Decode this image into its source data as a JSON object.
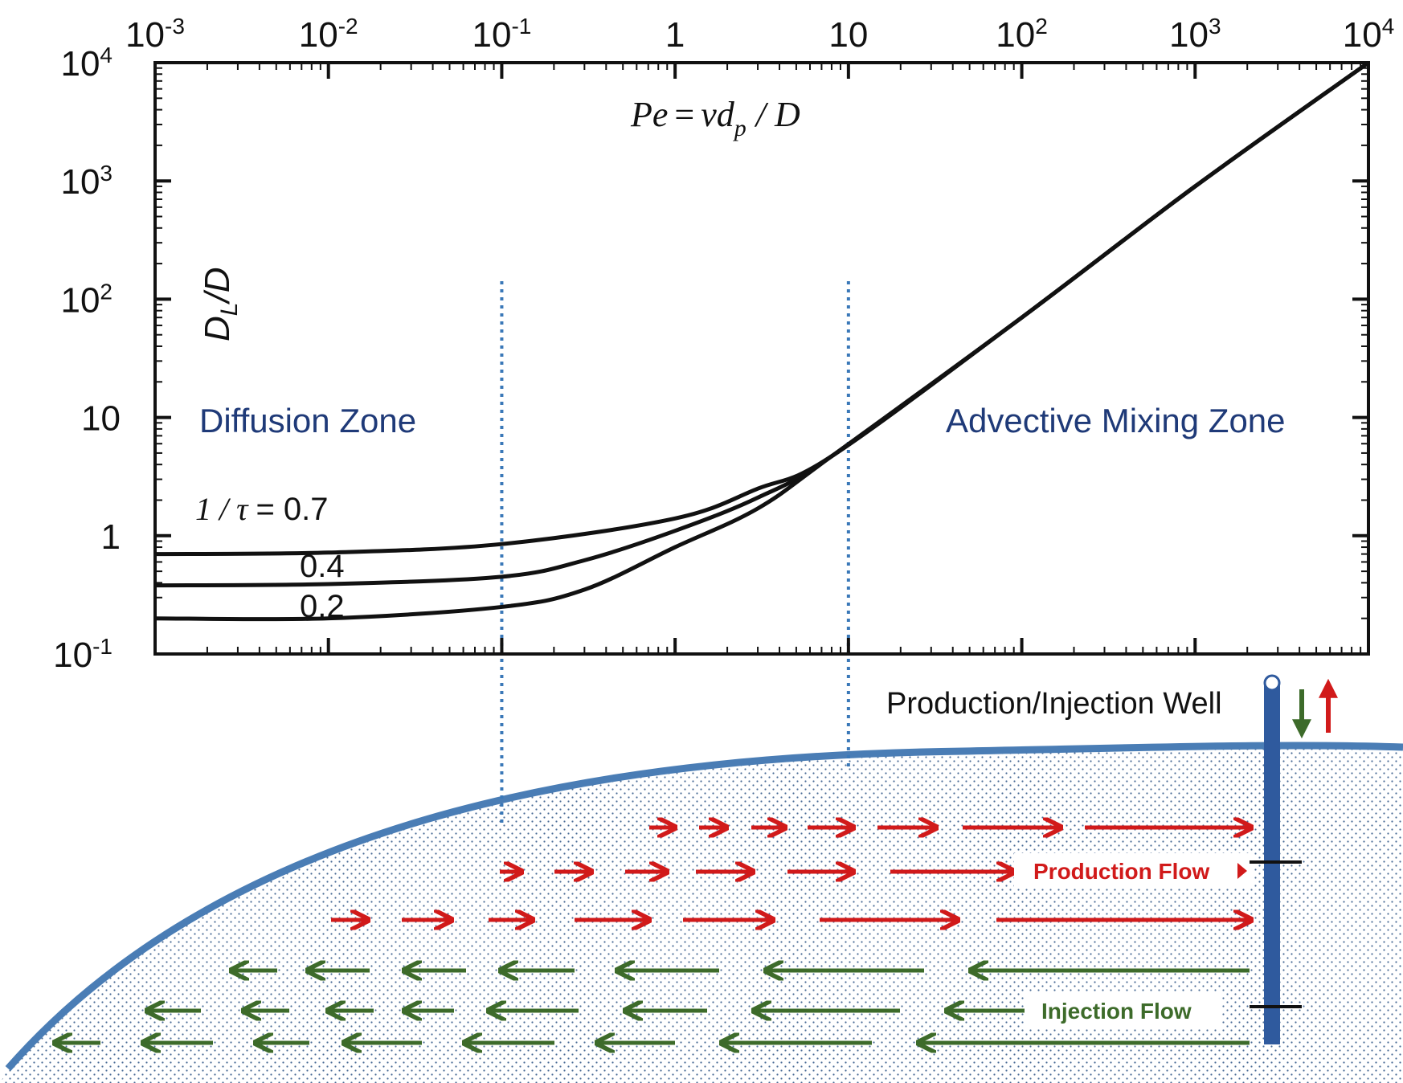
{
  "chart_data": {
    "type": "line",
    "title": "",
    "xlabel": "Pe = vd_p / D",
    "ylabel": "D_L/D",
    "x_scale": "log",
    "y_scale": "log",
    "xlim": [
      0.001,
      10000
    ],
    "ylim": [
      0.1,
      10000
    ],
    "x_ticks": [
      {
        "base": "10",
        "exp": "-3",
        "value": 0.001
      },
      {
        "base": "10",
        "exp": "-2",
        "value": 0.01
      },
      {
        "base": "10",
        "exp": "-1",
        "value": 0.1
      },
      {
        "base": "1",
        "exp": "",
        "value": 1
      },
      {
        "base": "10",
        "exp": "",
        "value": 10
      },
      {
        "base": "10",
        "exp": "2",
        "value": 100
      },
      {
        "base": "10",
        "exp": "3",
        "value": 1000
      },
      {
        "base": "10",
        "exp": "4",
        "value": 10000
      }
    ],
    "y_ticks": [
      {
        "base": "10",
        "exp": "-1",
        "value": 0.1
      },
      {
        "base": "1",
        "exp": "",
        "value": 1
      },
      {
        "base": "10",
        "exp": "",
        "value": 10
      },
      {
        "base": "10",
        "exp": "2",
        "value": 100
      },
      {
        "base": "10",
        "exp": "3",
        "value": 1000
      },
      {
        "base": "10",
        "exp": "4",
        "value": 10000
      }
    ],
    "series": [
      {
        "name": "1/τ = 0.7",
        "x": [
          0.001,
          0.01,
          0.1,
          1,
          3,
          8,
          100,
          1000,
          10000
        ],
        "values": [
          0.7,
          0.72,
          0.85,
          1.4,
          2.5,
          4.7,
          70,
          900,
          10000
        ]
      },
      {
        "name": "0.4",
        "x": [
          0.001,
          0.01,
          0.1,
          0.3,
          1,
          3,
          8,
          100,
          1000,
          10000
        ],
        "values": [
          0.38,
          0.39,
          0.45,
          0.62,
          1.1,
          2.1,
          4.7,
          70,
          900,
          10000
        ]
      },
      {
        "name": "0.2",
        "x": [
          0.001,
          0.01,
          0.1,
          0.3,
          1,
          3,
          8,
          100,
          1000,
          10000
        ],
        "values": [
          0.2,
          0.2,
          0.25,
          0.35,
          0.8,
          1.7,
          4.7,
          70,
          900,
          10000
        ]
      }
    ],
    "boundaries": [
      0.1,
      10
    ],
    "annotations": {
      "x_axis_formula": {
        "lhs": "Pe",
        "eq": "=",
        "v": "v",
        "d": "d",
        "sub": "p",
        "rest": "/ D"
      },
      "y_axis_label": {
        "main": "D",
        "sub": "L",
        "tail": "/D"
      },
      "diffusion_zone": "Diffusion Zone",
      "advective_zone": "Advective Mixing Zone",
      "curve_label_07": {
        "prefix": "1 / τ",
        "suffix": "= 0.7"
      },
      "curve_label_04": "0.4",
      "curve_label_02": "0.2"
    }
  },
  "schematic": {
    "well_label": "Production/Injection Well",
    "production_flow_label": "Production Flow",
    "injection_flow_label": "Injection Flow",
    "colors": {
      "production": "#d11a1a",
      "injection": "#3d6b2a",
      "reservoir_edge": "#4a7db5",
      "well": "#2f5a9e",
      "zone_label": "#1f3a78",
      "boundary": "#3a78b8"
    }
  }
}
